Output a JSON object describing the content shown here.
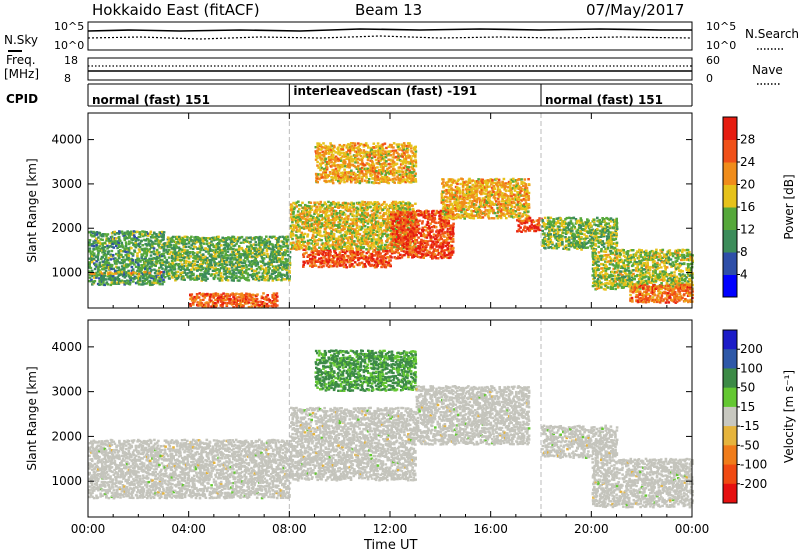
{
  "header": {
    "title": "Hokkaido East (fitACF)",
    "beam": "Beam 13",
    "date": "07/May/2017"
  },
  "noise_panel": {
    "left_label": "N.Sky",
    "left_ticks": [
      "10^5",
      "10^0"
    ],
    "right_label": "N.Search",
    "right_ticks": [
      "10^5",
      "10^0"
    ]
  },
  "freq_panel": {
    "left_label_1": "Freq.",
    "left_label_2": "[MHz]",
    "left_ticks": [
      "18",
      "8"
    ],
    "right_label": "Nave",
    "right_ticks": [
      "60",
      "0"
    ]
  },
  "cpid": {
    "label": "CPID",
    "segments": [
      {
        "text": "normal (fast) 151",
        "start_hour": 0,
        "end_hour": 8
      },
      {
        "text": "interleavedscan (fast) -191",
        "start_hour": 8,
        "end_hour": 18
      },
      {
        "text": "normal (fast) 151",
        "start_hour": 18,
        "end_hour": 24
      }
    ]
  },
  "colors": {
    "power_scale": [
      "#0000ff",
      "#2e4ea8",
      "#3c8c5a",
      "#56a83a",
      "#e6c21a",
      "#f08c1a",
      "#f05018",
      "#e61c10"
    ],
    "velocity_scale": [
      "#1c1cc8",
      "#2e58a8",
      "#3c8a46",
      "#64c832",
      "#c8c8c0",
      "#e6b43c",
      "#f07c1a",
      "#f04a12",
      "#e61010"
    ],
    "ground_scatter": "#c4c4bc"
  },
  "chart_data": [
    {
      "type": "heatmap",
      "name": "power",
      "ylabel": "Slant Range [km]",
      "xlabel": "",
      "xlim": [
        0,
        24
      ],
      "ylim": [
        200,
        4600
      ],
      "yticks": [
        "1000",
        "2000",
        "3000",
        "4000"
      ],
      "colorbar": {
        "label": "Power [dB]",
        "ticks": [
          "28",
          "24",
          "20",
          "16",
          "12",
          "8",
          "4"
        ]
      },
      "regions": [
        {
          "t0": 0.0,
          "t1": 3.0,
          "r0": 700,
          "r1": 1900,
          "value": 12
        },
        {
          "t0": 0.0,
          "t1": 3.0,
          "r0": 950,
          "r1": 1000,
          "value": 22
        },
        {
          "t0": 3.0,
          "t1": 8.0,
          "r0": 800,
          "r1": 1800,
          "value": 13
        },
        {
          "t0": 4.0,
          "t1": 7.5,
          "r0": 200,
          "r1": 500,
          "value": 25
        },
        {
          "t0": 8.5,
          "t1": 12.0,
          "r0": 1100,
          "r1": 1500,
          "value": 27
        },
        {
          "t0": 8.0,
          "t1": 13.0,
          "r0": 1500,
          "r1": 2600,
          "value": 18
        },
        {
          "t0": 9.0,
          "t1": 13.0,
          "r0": 3000,
          "r1": 3900,
          "value": 20
        },
        {
          "t0": 12.0,
          "t1": 14.5,
          "r0": 1300,
          "r1": 2400,
          "value": 27
        },
        {
          "t0": 14.0,
          "t1": 17.5,
          "r0": 2200,
          "r1": 3100,
          "value": 20
        },
        {
          "t0": 17.0,
          "t1": 18.0,
          "r0": 1900,
          "r1": 2200,
          "value": 27
        },
        {
          "t0": 18.0,
          "t1": 21.0,
          "r0": 1500,
          "r1": 2200,
          "value": 14
        },
        {
          "t0": 20.0,
          "t1": 24.0,
          "r0": 600,
          "r1": 1500,
          "value": 16
        },
        {
          "t0": 21.5,
          "t1": 24.0,
          "r0": 300,
          "r1": 700,
          "value": 24
        }
      ]
    },
    {
      "type": "heatmap",
      "name": "velocity",
      "ylabel": "Slant Range [km]",
      "xlabel": "Time UT",
      "xlim": [
        0,
        24
      ],
      "ylim": [
        200,
        4600
      ],
      "xticks": [
        "00:00",
        "04:00",
        "08:00",
        "12:00",
        "16:00",
        "20:00",
        "00:00"
      ],
      "yticks": [
        "1000",
        "2000",
        "3000",
        "4000"
      ],
      "colorbar": {
        "label": "Velocity [m s⁻¹]",
        "ticks": [
          "200",
          "100",
          "50",
          "15",
          "-15",
          "-50",
          "-100",
          "-200"
        ]
      },
      "regions": [
        {
          "t0": 0.0,
          "t1": 8.0,
          "r0": 600,
          "r1": 1900,
          "value": 0
        },
        {
          "t0": 8.0,
          "t1": 13.0,
          "r0": 1000,
          "r1": 2600,
          "value": 0
        },
        {
          "t0": 9.0,
          "t1": 13.0,
          "r0": 3000,
          "r1": 3900,
          "value": 40
        },
        {
          "t0": 13.0,
          "t1": 17.5,
          "r0": 1800,
          "r1": 3100,
          "value": 0
        },
        {
          "t0": 18.0,
          "t1": 21.0,
          "r0": 1500,
          "r1": 2200,
          "value": 0
        },
        {
          "t0": 20.0,
          "t1": 24.0,
          "r0": 400,
          "r1": 1500,
          "value": 0
        }
      ]
    }
  ],
  "axis": {
    "time_label": "Time UT"
  }
}
